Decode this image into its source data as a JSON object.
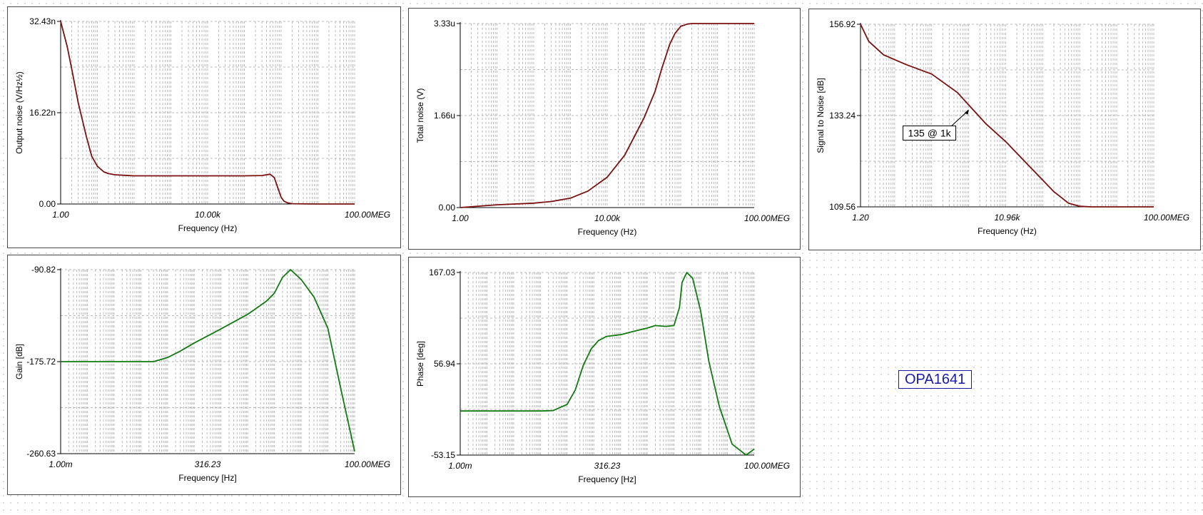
{
  "circuit_label": "OPA1641",
  "chart_data": [
    {
      "type": "line",
      "ylabel": "Output noise (V/Hz½)",
      "xlabel": "Frequency (Hz)",
      "xscale": "log",
      "x_ticks": [
        "1.00",
        "10.00k",
        "100.00MEG"
      ],
      "y_ticks": [
        "32.43n",
        "16.22n",
        "0.00"
      ],
      "ylim": [
        0,
        3.243e-08
      ],
      "xlim": [
        1,
        100000000.0
      ],
      "grid": true,
      "color": "#7a1010",
      "series": [
        {
          "x": [
            1,
            1.5,
            2,
            3,
            5,
            7,
            10,
            15,
            20,
            30,
            50,
            100,
            1000,
            10000,
            100000,
            300000,
            500000,
            650000,
            800000,
            1000000,
            1200000,
            1500000,
            2000000,
            5000000,
            10000000,
            100000000
          ],
          "y": [
            3.243e-08,
            2.8e-08,
            2.4e-08,
            1.8e-08,
            1.2e-08,
            8.5e-09,
            6.7e-09,
            5.7e-09,
            5.4e-09,
            5.2e-09,
            5.1e-09,
            5e-09,
            5e-09,
            5e-09,
            5e-09,
            5.05e-09,
            5.3e-09,
            4.7e-09,
            3e-09,
            1.2e-09,
            5e-10,
            2e-10,
            5e-11,
            1e-11,
            0,
            0
          ]
        }
      ]
    },
    {
      "type": "line",
      "ylabel": "Total noise (V)",
      "xlabel": "Frequency (Hz)",
      "xscale": "log",
      "x_ticks": [
        "1.00",
        "10.00k",
        "100.00MEG"
      ],
      "y_ticks": [
        "3.33u",
        "1.66u",
        "0.00"
      ],
      "ylim": [
        0,
        3.33e-06
      ],
      "xlim": [
        1,
        100000000.0
      ],
      "grid": true,
      "color": "#7a1010",
      "series": [
        {
          "x": [
            1,
            10,
            100,
            300,
            1000,
            3000,
            10000,
            30000,
            100000,
            200000,
            300000,
            500000,
            700000,
            1000000,
            1500000,
            2000000,
            100000000
          ],
          "y": [
            0.0,
            5e-08,
            8e-08,
            1.1e-07,
            1.7e-07,
            3e-07,
            5.5e-07,
            9.5e-07,
            1.62e-06,
            2.1e-06,
            2.5e-06,
            2.95e-06,
            3.15e-06,
            3.28e-06,
            3.32e-06,
            3.33e-06,
            3.33e-06
          ]
        }
      ]
    },
    {
      "type": "line",
      "ylabel": "Signal to Noise [dB]",
      "xlabel": "Frequency (Hz)",
      "xscale": "log",
      "x_ticks": [
        "1.20",
        "10.96k",
        "100.00MEG"
      ],
      "y_ticks": [
        "156.92",
        "133.24",
        "109.56"
      ],
      "ylim": [
        109.56,
        156.92
      ],
      "xlim": [
        1.2,
        100000000.0
      ],
      "grid": true,
      "color": "#7a1010",
      "annotation": {
        "text": "135 @ 1k",
        "x": 1000,
        "y": 135
      },
      "series": [
        {
          "x": [
            1.2,
            2,
            5,
            20,
            100,
            500,
            1000,
            3000,
            10000,
            50000,
            200000,
            500000,
            1000000,
            2000000,
            100000000
          ],
          "y": [
            156.92,
            152.5,
            149.0,
            146.5,
            144.0,
            139.2,
            136.0,
            131.0,
            126.5,
            119.5,
            113.5,
            110.5,
            109.7,
            109.56,
            109.56
          ]
        }
      ]
    },
    {
      "type": "line",
      "ylabel": "Gain [dB]",
      "xlabel": "Frequency [Hz]",
      "xscale": "log",
      "x_ticks": [
        "1.00m",
        "316.23",
        "100.00MEG"
      ],
      "y_ticks": [
        "-90.82",
        "-175.72",
        "-260.63"
      ],
      "ylim": [
        -260.63,
        -90.82
      ],
      "xlim": [
        0.001,
        100000000.0
      ],
      "grid": true,
      "color": "#137a13",
      "series": [
        {
          "x": [
            0.001,
            0.1,
            1,
            3,
            10,
            30,
            100,
            1000,
            10000,
            50000,
            100000,
            200000,
            400000,
            1000000,
            3000000,
            10000000,
            30000000,
            100000000
          ],
          "y": [
            -175.72,
            -175.72,
            -175.72,
            -175.72,
            -172.0,
            -166.0,
            -158.5,
            -145.5,
            -132.0,
            -120.0,
            -112.5,
            -98.0,
            -90.82,
            -100.0,
            -116.0,
            -145.0,
            -200.0,
            -258.5
          ]
        }
      ]
    },
    {
      "type": "line",
      "ylabel": "Phase [deg]",
      "xlabel": "Frequency [Hz]",
      "xscale": "log",
      "x_ticks": [
        "1.00m",
        "316.23",
        "100.00MEG"
      ],
      "y_ticks": [
        "167.03",
        "56.94",
        "-53.15"
      ],
      "ylim": [
        -53.15,
        167.03
      ],
      "xlim": [
        0.001,
        100000000.0
      ],
      "grid": true,
      "color": "#137a13",
      "series": [
        {
          "x": [
            0.001,
            0.1,
            1,
            3,
            10,
            20,
            40,
            80,
            150,
            300,
            1000,
            3000,
            10000,
            20000,
            50000,
            100000,
            160000,
            200000,
            300000,
            500000,
            1000000,
            2000000,
            5000000,
            15000000,
            50000000,
            100000000
          ],
          "y": [
            0.0,
            0.0,
            0.0,
            0.5,
            8,
            25,
            55,
            75,
            85,
            90,
            92,
            96,
            100,
            103,
            102,
            103,
            125,
            155,
            167.03,
            160,
            120,
            60,
            5,
            -40,
            -53.15,
            -46
          ]
        }
      ]
    }
  ]
}
